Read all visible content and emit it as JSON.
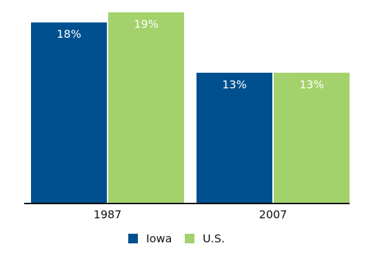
{
  "chart_data": {
    "type": "bar",
    "categories": [
      "1987",
      "2007"
    ],
    "series": [
      {
        "name": "Iowa",
        "color": "#00508f",
        "values": [
          18,
          13
        ],
        "value_labels": [
          "18%",
          "13%"
        ]
      },
      {
        "name": "U.S.",
        "color": "#a3d16b",
        "values": [
          19,
          13
        ],
        "value_labels": [
          "19%",
          "13%"
        ]
      }
    ],
    "legend": "bottom"
  }
}
